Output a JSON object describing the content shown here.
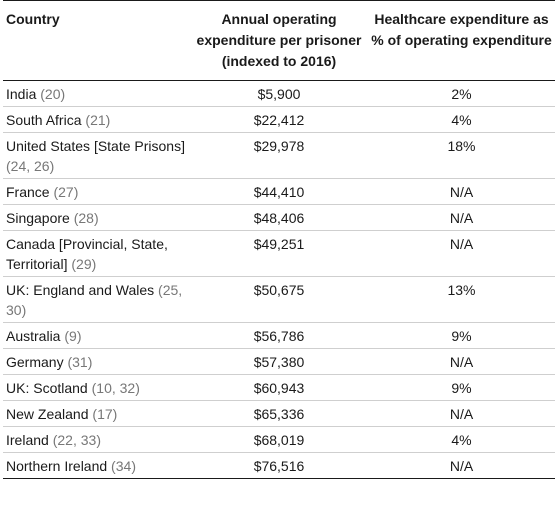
{
  "headers": {
    "country": "Country",
    "expenditure": "Annual operating expenditure per prisoner (indexed to 2016)",
    "healthcare": "Healthcare expenditure as % of operating expenditure"
  },
  "rows": [
    {
      "country": "India",
      "ref": "20",
      "expenditure": "$5,900",
      "healthcare": "2%"
    },
    {
      "country": "South Africa",
      "ref": "21",
      "expenditure": "$22,412",
      "healthcare": "4%"
    },
    {
      "country": "United States [State Prisons]",
      "ref": "24, 26",
      "expenditure": "$29,978",
      "healthcare": "18%"
    },
    {
      "country": "France",
      "ref": "27",
      "expenditure": "$44,410",
      "healthcare": "N/A"
    },
    {
      "country": "Singapore",
      "ref": "28",
      "expenditure": "$48,406",
      "healthcare": "N/A"
    },
    {
      "country": "Canada [Provincial, State, Territorial]",
      "ref": "29",
      "expenditure": "$49,251",
      "healthcare": "N/A"
    },
    {
      "country": "UK: England and Wales",
      "ref": "25, 30",
      "expenditure": "$50,675",
      "healthcare": "13%"
    },
    {
      "country": "Australia",
      "ref": "9",
      "expenditure": "$56,786",
      "healthcare": "9%"
    },
    {
      "country": "Germany",
      "ref": "31",
      "expenditure": "$57,380",
      "healthcare": "N/A"
    },
    {
      "country": "UK: Scotland",
      "ref": "10, 32",
      "expenditure": "$60,943",
      "healthcare": "9%"
    },
    {
      "country": "New Zealand",
      "ref": "17",
      "expenditure": "$65,336",
      "healthcare": "N/A"
    },
    {
      "country": "Ireland",
      "ref": "22, 33",
      "expenditure": "$68,019",
      "healthcare": "4%"
    },
    {
      "country": "Northern Ireland",
      "ref": "34",
      "expenditure": "$76,516",
      "healthcare": "N/A"
    }
  ]
}
